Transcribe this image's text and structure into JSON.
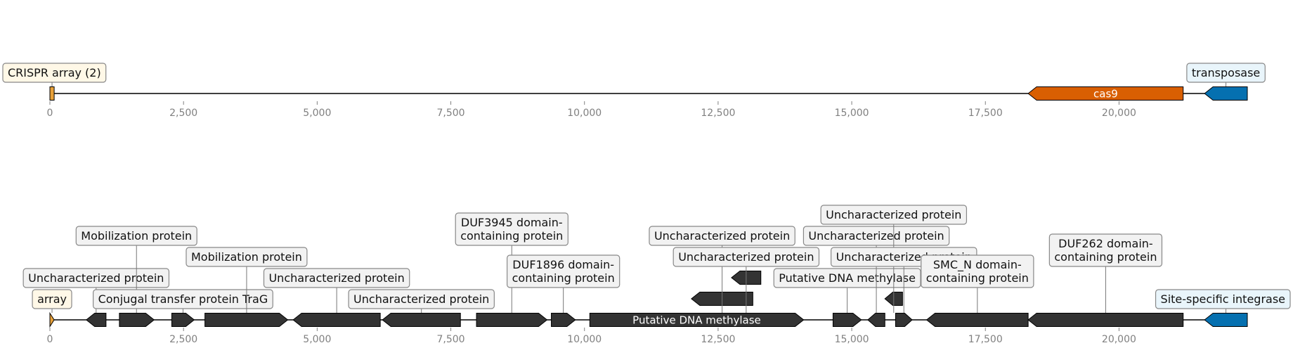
{
  "colors": {
    "cas": "#d95f02",
    "transposase": "#0570b0",
    "other": "#333333",
    "crispr": "#e8a13a",
    "crispr_box": "#fff8e7",
    "transposase_box": "#e9f5fb",
    "other_box": "#f2f2f2",
    "axis_tick": "#808080"
  },
  "tracks": [
    {
      "ticks": [
        "0",
        "2,500",
        "5,000",
        "7,500",
        "10,000",
        "12,500",
        "15,000",
        "17,500",
        "20,000"
      ],
      "tick_values": [
        0,
        2500,
        5000,
        7500,
        10000,
        12500,
        15000,
        17500,
        20000
      ],
      "range": [
        0,
        22400
      ],
      "features": [
        {
          "kind": "crispr",
          "start": 0,
          "end": 80,
          "row": 0
        },
        {
          "kind": "cas",
          "start": 18300,
          "end": 21200,
          "strand": -1,
          "label": "cas9",
          "row": 0
        },
        {
          "kind": "transposase",
          "start": 21600,
          "end": 22400,
          "strand": -1,
          "row": 0
        }
      ],
      "callouts": [
        {
          "lines": [
            "CRISPR array (2)"
          ],
          "anchor": 40,
          "center": 40,
          "kind": "crispr",
          "level": 0
        },
        {
          "lines": [
            "transposase"
          ],
          "anchor": 22000,
          "center": 22000,
          "kind": "transposase",
          "level": 0
        }
      ]
    },
    {
      "ticks": [
        "0",
        "2,500",
        "5,000",
        "7,500",
        "10,000",
        "12,500",
        "15,000",
        "17,500",
        "20,000"
      ],
      "tick_values": [
        0,
        2500,
        5000,
        7500,
        10000,
        12500,
        15000,
        17500,
        20000
      ],
      "range": [
        0,
        22400
      ],
      "features": [
        {
          "kind": "crispr",
          "start": 0,
          "end": 80,
          "strand": 1,
          "row": 0
        },
        {
          "kind": "other",
          "start": 680,
          "end": 1050,
          "strand": -1,
          "row": 0
        },
        {
          "kind": "other",
          "start": 1300,
          "end": 1950,
          "strand": 1,
          "row": 0
        },
        {
          "kind": "other",
          "start": 2280,
          "end": 2700,
          "strand": 1,
          "row": 0
        },
        {
          "kind": "other",
          "start": 2900,
          "end": 4450,
          "strand": 1,
          "row": 0
        },
        {
          "kind": "other",
          "start": 4550,
          "end": 6180,
          "strand": -1,
          "row": 0
        },
        {
          "kind": "other",
          "start": 6220,
          "end": 7680,
          "strand": -1,
          "row": 0
        },
        {
          "kind": "other",
          "start": 7980,
          "end": 9300,
          "strand": 1,
          "row": 0
        },
        {
          "kind": "other",
          "start": 9380,
          "end": 9830,
          "strand": 1,
          "row": 0
        },
        {
          "kind": "other",
          "start": 10100,
          "end": 14100,
          "strand": 1,
          "row": 0,
          "label": "Putative DNA methylase"
        },
        {
          "kind": "other",
          "start": 12000,
          "end": 13150,
          "strand": -1,
          "row": 1
        },
        {
          "kind": "other",
          "start": 12750,
          "end": 13300,
          "strand": -1,
          "row": 2
        },
        {
          "kind": "other",
          "start": 14650,
          "end": 15180,
          "strand": 1,
          "row": 0
        },
        {
          "kind": "other",
          "start": 15300,
          "end": 15620,
          "strand": -1,
          "row": 0
        },
        {
          "kind": "other",
          "start": 15620,
          "end": 15950,
          "strand": -1,
          "row": 1
        },
        {
          "kind": "other",
          "start": 15820,
          "end": 16130,
          "strand": 1,
          "row": 0
        },
        {
          "kind": "other",
          "start": 16400,
          "end": 18300,
          "strand": -1,
          "row": 0
        },
        {
          "kind": "other",
          "start": 18300,
          "end": 21200,
          "strand": -1,
          "row": 0
        },
        {
          "kind": "transposase",
          "start": 21600,
          "end": 22400,
          "strand": -1,
          "row": 0
        }
      ],
      "callouts": [
        {
          "lines": [
            "array"
          ],
          "anchor": 40,
          "center": 40,
          "kind": "crispr",
          "level": 0
        },
        {
          "lines": [
            "Uncharacterized protein"
          ],
          "anchor": 865,
          "center": 865,
          "kind": "other",
          "level": 1
        },
        {
          "lines": [
            "Mobilization protein"
          ],
          "anchor": 1620,
          "center": 1620,
          "kind": "other",
          "level": 3
        },
        {
          "lines": [
            "Conjugal transfer protein TraG"
          ],
          "anchor": 2490,
          "center": 2490,
          "kind": "other",
          "level": 0
        },
        {
          "lines": [
            "Mobilization protein"
          ],
          "anchor": 3680,
          "center": 3680,
          "kind": "other",
          "level": 2
        },
        {
          "lines": [
            "Uncharacterized protein"
          ],
          "anchor": 5365,
          "center": 5365,
          "kind": "other",
          "level": 1
        },
        {
          "lines": [
            "Uncharacterized protein"
          ],
          "anchor": 6950,
          "center": 6950,
          "kind": "other",
          "level": 0
        },
        {
          "lines": [
            "DUF3945 domain-",
            "containing protein"
          ],
          "anchor": 8640,
          "center": 8640,
          "kind": "other",
          "level": 3
        },
        {
          "lines": [
            "DUF1896 domain-",
            "containing protein"
          ],
          "anchor": 9605,
          "center": 9605,
          "kind": "other",
          "level": 1
        },
        {
          "lines": [
            "Uncharacterized protein"
          ],
          "anchor": 12575,
          "center": 12575,
          "kind": "other",
          "level": 3
        },
        {
          "lines": [
            "Uncharacterized protein"
          ],
          "anchor": 13025,
          "center": 13025,
          "kind": "other",
          "level": 2
        },
        {
          "lines": [
            "Putative DNA methylase"
          ],
          "anchor": 14915,
          "center": 14915,
          "kind": "other",
          "level": 1
        },
        {
          "lines": [
            "Uncharacterized protein"
          ],
          "anchor": 15460,
          "center": 15460,
          "kind": "other",
          "level": 3
        },
        {
          "lines": [
            "Uncharacterized protein"
          ],
          "anchor": 15785,
          "center": 15785,
          "kind": "other",
          "level": 4
        },
        {
          "lines": [
            "Uncharacterized protein"
          ],
          "anchor": 15975,
          "center": 15975,
          "kind": "other",
          "level": 2
        },
        {
          "lines": [
            "SMC_N domain-",
            "containing protein"
          ],
          "anchor": 17350,
          "center": 17350,
          "kind": "other",
          "level": 1
        },
        {
          "lines": [
            "DUF262 domain-",
            "containing protein"
          ],
          "anchor": 19750,
          "center": 19750,
          "kind": "other",
          "level": 2
        },
        {
          "lines": [
            "Site-specific integrase"
          ],
          "anchor": 22000,
          "center": 22000,
          "kind": "transposase",
          "level": 0
        }
      ]
    }
  ]
}
